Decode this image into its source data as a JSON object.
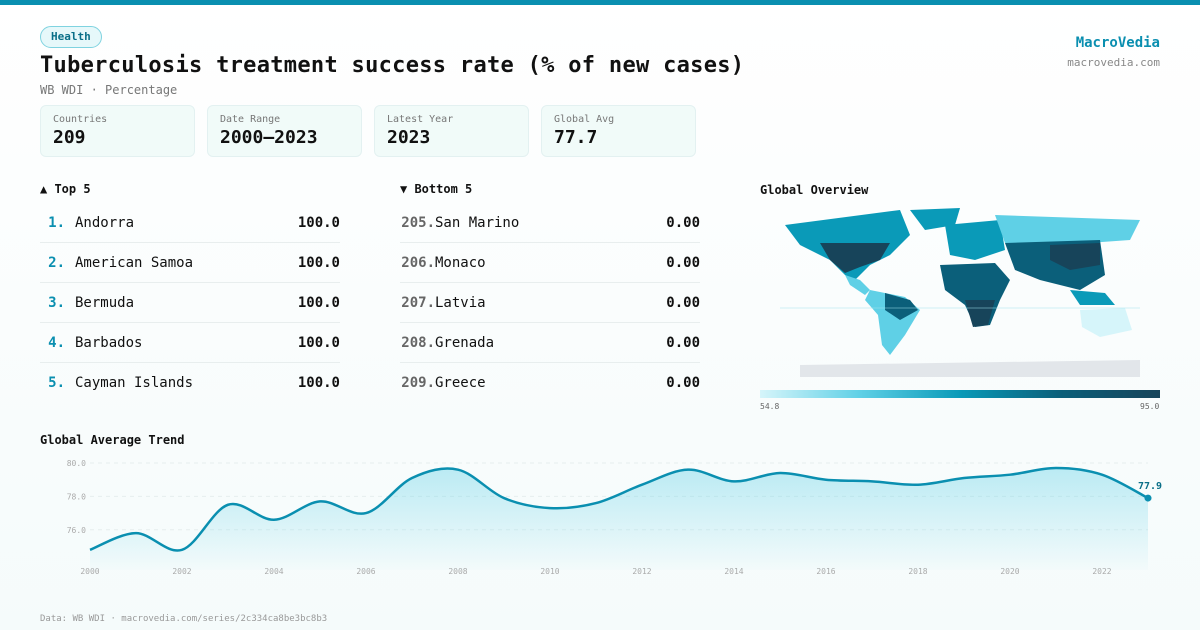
{
  "badge": "Health",
  "title": "Tuberculosis treatment success rate (% of new cases)",
  "subtitle": "WB WDI · Percentage",
  "brand": {
    "name": "MacroVedia",
    "url": "macrovedia.com"
  },
  "stats": [
    {
      "label": "Countries",
      "value": "209"
    },
    {
      "label": "Date Range",
      "value": "2000–2023"
    },
    {
      "label": "Latest Year",
      "value": "2023"
    },
    {
      "label": "Global Avg",
      "value": "77.7"
    }
  ],
  "top": {
    "title": "▲ Top 5",
    "items": [
      {
        "rank": "1.",
        "name": "Andorra",
        "value": "100.0"
      },
      {
        "rank": "2.",
        "name": "American Samoa",
        "value": "100.0"
      },
      {
        "rank": "3.",
        "name": "Bermuda",
        "value": "100.0"
      },
      {
        "rank": "4.",
        "name": "Barbados",
        "value": "100.0"
      },
      {
        "rank": "5.",
        "name": "Cayman Islands",
        "value": "100.0"
      }
    ]
  },
  "bottom": {
    "title": "▼ Bottom 5",
    "items": [
      {
        "rank": "205.",
        "name": "San Marino",
        "value": "0.00"
      },
      {
        "rank": "206.",
        "name": "Monaco",
        "value": "0.00"
      },
      {
        "rank": "207.",
        "name": "Latvia",
        "value": "0.00"
      },
      {
        "rank": "208.",
        "name": "Grenada",
        "value": "0.00"
      },
      {
        "rank": "209.",
        "name": "Greece",
        "value": "0.00"
      }
    ]
  },
  "map": {
    "title": "Global Overview",
    "legend_min": "54.8",
    "legend_max": "95.0",
    "colors": [
      "#d6f5fa",
      "#5fd0e6",
      "#0a9ab8",
      "#0b5f7a",
      "#17445a"
    ]
  },
  "chart_data": {
    "type": "area",
    "title": "Global Average Trend",
    "x": [
      2000,
      2001,
      2002,
      2003,
      2004,
      2005,
      2006,
      2007,
      2008,
      2009,
      2010,
      2011,
      2012,
      2013,
      2014,
      2015,
      2016,
      2017,
      2018,
      2019,
      2020,
      2021,
      2022,
      2023
    ],
    "values": [
      74.8,
      75.8,
      74.8,
      77.5,
      76.6,
      77.7,
      77.0,
      79.1,
      79.6,
      77.9,
      77.3,
      77.6,
      78.7,
      79.6,
      78.9,
      79.4,
      79.0,
      78.9,
      78.7,
      79.1,
      79.3,
      79.7,
      79.3,
      77.9
    ],
    "yticks": [
      "76.0",
      "78.0",
      "80.0"
    ],
    "xticks": [
      "2000",
      "2002",
      "2004",
      "2006",
      "2008",
      "2010",
      "2012",
      "2014",
      "2016",
      "2018",
      "2020",
      "2022"
    ],
    "ylim": [
      73.6,
      80
    ],
    "last_label": "77.9",
    "color": "#0a8fb0",
    "grid": true
  },
  "footer": "Data: WB WDI · macrovedia.com/series/2c334ca8be3bc8b3"
}
